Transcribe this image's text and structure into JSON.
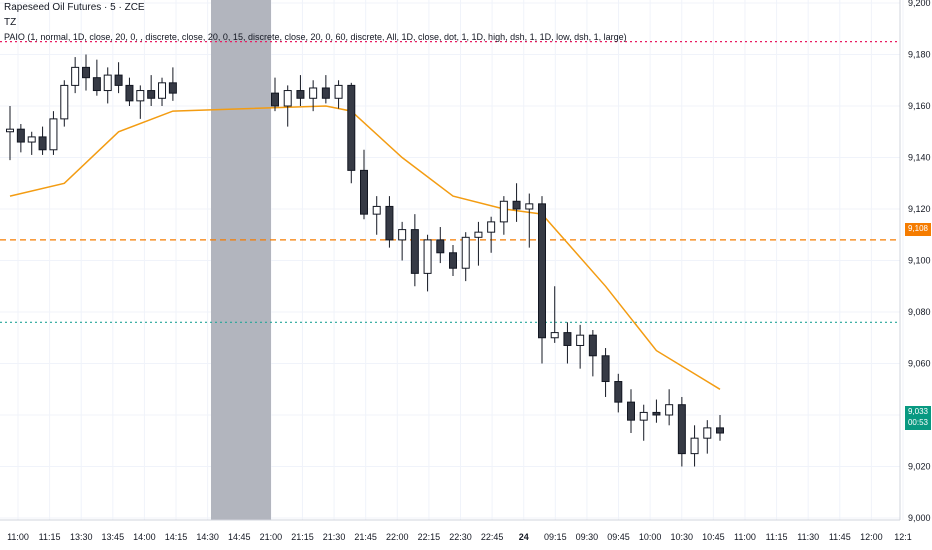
{
  "header": {
    "title": "Rapeseed Oil Futures · 5 · ZCE",
    "indicator1": "TZ",
    "indicator2": "PAIO (1, normal, 1D, close, 20, 0, , discrete, close, 20, 0, 15, discrete, close, 20, 0, 60, discrete, All, 1D, close, dot, 1, 1D, high, dsh, 1, 1D, low, dsh, 1, large)"
  },
  "colors": {
    "up": "#ffffff",
    "down": "#363a45",
    "ema": "#f39c12",
    "marker_red": "#ff6b6b",
    "marker_green": "#26a69a",
    "session_gray": "#b2b5be",
    "last_price": "#089981",
    "level_orange": "#f57c00"
  },
  "chart_data": {
    "type": "candlestick",
    "y_axis": {
      "min": 9000,
      "max": 9200,
      "step": 20,
      "labels": [
        "9,200",
        "9,180",
        "9,160",
        "9,140",
        "9,120",
        "9,100",
        "9,080",
        "9,060",
        "9,040",
        "9,020",
        "9,000"
      ]
    },
    "x_axis_labels": [
      "11:00",
      "11:15",
      "13:30",
      "13:45",
      "14:00",
      "14:15",
      "14:30",
      "14:45",
      "21:00",
      "21:15",
      "21:30",
      "21:45",
      "22:00",
      "22:15",
      "22:30",
      "22:45",
      "24",
      "09:15",
      "09:30",
      "09:45",
      "10:00",
      "10:30",
      "10:45",
      "11:00",
      "11:15",
      "11:30",
      "11:45",
      "12:00",
      "12:1"
    ],
    "price_tags": {
      "level": "9,108",
      "last": "9,033",
      "countdown": "00:53"
    },
    "candles": [
      [
        9150,
        9160,
        9139,
        9151
      ],
      [
        9151,
        9153,
        9142,
        9146
      ],
      [
        9146,
        9150,
        9141,
        9148
      ],
      [
        9148,
        9152,
        9141,
        9143
      ],
      [
        9143,
        9158,
        9141,
        9155
      ],
      [
        9155,
        9170,
        9152,
        9168
      ],
      [
        9168,
        9179,
        9165,
        9175
      ],
      [
        9175,
        9180,
        9166,
        9171
      ],
      [
        9171,
        9178,
        9164,
        9166
      ],
      [
        9166,
        9175,
        9161,
        9172
      ],
      [
        9172,
        9177,
        9165,
        9168
      ],
      [
        9168,
        9171,
        9160,
        9162
      ],
      [
        9162,
        9168,
        9155,
        9166
      ],
      [
        9166,
        9172,
        9160,
        9163
      ],
      [
        9163,
        9171,
        9160,
        9169
      ],
      [
        9169,
        9175,
        9162,
        9165
      ],
      [
        9165,
        9171,
        9158,
        9160
      ],
      [
        9160,
        9168,
        9152,
        9166
      ],
      [
        9166,
        9172,
        9160,
        9163
      ],
      [
        9163,
        9170,
        9158,
        9167
      ],
      [
        9167,
        9172,
        9161,
        9163
      ],
      [
        9163,
        9170,
        9159,
        9168
      ],
      [
        9168,
        9169,
        9130,
        9135
      ],
      [
        9135,
        9143,
        9116,
        9118
      ],
      [
        9118,
        9125,
        9110,
        9121
      ],
      [
        9121,
        9125,
        9105,
        9108
      ],
      [
        9108,
        9115,
        9100,
        9112
      ],
      [
        9112,
        9118,
        9090,
        9095
      ],
      [
        9095,
        9110,
        9088,
        9108
      ],
      [
        9108,
        9113,
        9099,
        9103
      ],
      [
        9103,
        9106,
        9094,
        9097
      ],
      [
        9097,
        9111,
        9092,
        9109
      ],
      [
        9109,
        9115,
        9098,
        9111
      ],
      [
        9111,
        9117,
        9103,
        9115
      ],
      [
        9115,
        9125,
        9110,
        9123
      ],
      [
        9123,
        9130,
        9115,
        9120
      ],
      [
        9120,
        9126,
        9105,
        9122
      ],
      [
        9122,
        9125,
        9060,
        9070
      ],
      [
        9070,
        9090,
        9068,
        9072
      ],
      [
        9072,
        9076,
        9060,
        9067
      ],
      [
        9067,
        9075,
        9058,
        9071
      ],
      [
        9071,
        9073,
        9055,
        9063
      ],
      [
        9063,
        9066,
        9047,
        9053
      ],
      [
        9053,
        9056,
        9041,
        9045
      ],
      [
        9045,
        9050,
        9033,
        9038
      ],
      [
        9038,
        9044,
        9030,
        9041
      ],
      [
        9041,
        9046,
        9037,
        9040
      ],
      [
        9040,
        9050,
        9036,
        9044
      ],
      [
        9044,
        9047,
        9020,
        9025
      ],
      [
        9025,
        9036,
        9020,
        9031
      ],
      [
        9031,
        9038,
        9025,
        9035
      ],
      [
        9035,
        9040,
        9030,
        9033
      ]
    ],
    "ema20": [
      [
        0,
        9125
      ],
      [
        5,
        9130
      ],
      [
        10,
        9150
      ],
      [
        15,
        9158
      ],
      [
        20,
        9160
      ],
      [
        22,
        9158
      ],
      [
        26,
        9140
      ],
      [
        30,
        9125
      ],
      [
        34,
        9120
      ],
      [
        37,
        9118
      ],
      [
        42,
        9090
      ],
      [
        46,
        9065
      ],
      [
        51,
        9050
      ]
    ],
    "levels": [
      {
        "name": "prior-high",
        "price": 9185,
        "style": "dotted"
      },
      {
        "name": "prior-close",
        "price": 9108,
        "style": "dashed"
      },
      {
        "name": "prior-low",
        "price": 9076,
        "style": "dotted"
      }
    ]
  }
}
